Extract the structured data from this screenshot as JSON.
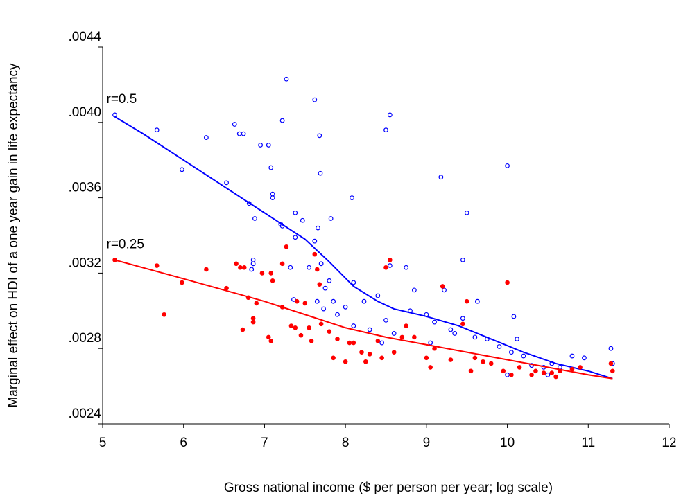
{
  "chart_data": {
    "type": "scatter",
    "x_label": "Gross national income ($ per person per year; log scale)",
    "y_label": "Marginal effect on HDI of a one year gain in life expectancy",
    "xlim": [
      5,
      12
    ],
    "xticks": [
      5,
      6,
      7,
      8,
      9,
      10,
      11,
      12
    ],
    "ylim": [
      0.0024,
      0.0044
    ],
    "yticks": [
      {
        "value": 0.0024,
        "label": ".0024"
      },
      {
        "value": 0.0028,
        "label": ".0028"
      },
      {
        "value": 0.0032,
        "label": ".0032"
      },
      {
        "value": 0.0036,
        "label": ".0036"
      },
      {
        "value": 0.004,
        "label": ".0040"
      },
      {
        "value": 0.0044,
        "label": ".0044"
      }
    ],
    "series": [
      {
        "name": "r=0.5",
        "color": "#0000ff",
        "marker": "open",
        "x": [
          5.15,
          5.67,
          5.98,
          6.28,
          6.53,
          6.63,
          6.69,
          6.74,
          6.81,
          6.86,
          6.86,
          6.88,
          6.95,
          7.05,
          7.08,
          7.1,
          7.1,
          7.22,
          7.2,
          7.27,
          7.22,
          7.32,
          7.36,
          7.38,
          7.38,
          7.47,
          7.55,
          7.62,
          7.62,
          7.66,
          7.68,
          7.69,
          7.7,
          7.75,
          7.8,
          7.82,
          8.08,
          8.1,
          8.23,
          8.4,
          8.5,
          8.55,
          8.55,
          8.75,
          8.85,
          9.18,
          9.22,
          9.45,
          9.5,
          9.63,
          10.0,
          10.08,
          10.12,
          11.28,
          8.0,
          8.1,
          8.3,
          8.5,
          8.6,
          8.8,
          9.0,
          9.1,
          9.3,
          9.45,
          9.6,
          9.75,
          9.9,
          10.05,
          10.2,
          10.3,
          10.45,
          10.55,
          10.65,
          10.8,
          10.95,
          11.3,
          7.85,
          7.9,
          7.73,
          8.45,
          9.05,
          9.35,
          10.5,
          10.0,
          6.84,
          7.65
        ],
        "values": [
          0.00404,
          0.00396,
          0.00375,
          0.00392,
          0.00368,
          0.00399,
          0.00394,
          0.00394,
          0.00357,
          0.00327,
          0.00325,
          0.00349,
          0.00388,
          0.00388,
          0.00376,
          0.00362,
          0.0036,
          0.00401,
          0.00346,
          0.00423,
          0.00345,
          0.00323,
          0.00306,
          0.00352,
          0.00339,
          0.00348,
          0.00323,
          0.00412,
          0.00337,
          0.00344,
          0.00393,
          0.00373,
          0.00325,
          0.00312,
          0.00316,
          0.00349,
          0.0036,
          0.00315,
          0.00305,
          0.00308,
          0.00396,
          0.00404,
          0.00324,
          0.00323,
          0.00311,
          0.00371,
          0.00311,
          0.00327,
          0.00352,
          0.00305,
          0.00377,
          0.00297,
          0.00285,
          0.0028,
          0.00302,
          0.00292,
          0.0029,
          0.00295,
          0.00288,
          0.003,
          0.00298,
          0.00294,
          0.0029,
          0.00296,
          0.00286,
          0.00285,
          0.00281,
          0.00278,
          0.00276,
          0.00271,
          0.0027,
          0.00272,
          0.0027,
          0.00276,
          0.00275,
          0.00272,
          0.00305,
          0.00298,
          0.00301,
          0.00283,
          0.00283,
          0.00288,
          0.00266,
          0.00266,
          0.00322,
          0.00305
        ],
        "fit": {
          "x": [
            5.15,
            5.5,
            6,
            6.5,
            7,
            7.5,
            7.8,
            8.1,
            8.4,
            8.6,
            9,
            9.4,
            9.8,
            10.2,
            10.6,
            11,
            11.3
          ],
          "values": [
            0.00403,
            0.00394,
            0.0038,
            0.00366,
            0.00352,
            0.00338,
            0.00326,
            0.00313,
            0.00305,
            0.00301,
            0.00297,
            0.00292,
            0.00285,
            0.00278,
            0.00272,
            0.00268,
            0.00264
          ]
        }
      },
      {
        "name": "r=0.25",
        "color": "#ff0000",
        "marker": "filled",
        "x": [
          5.15,
          5.67,
          5.76,
          5.98,
          6.28,
          6.53,
          6.65,
          6.7,
          6.73,
          6.75,
          6.8,
          6.86,
          6.86,
          6.9,
          6.97,
          7.05,
          7.08,
          7.08,
          7.1,
          7.22,
          7.22,
          7.27,
          7.33,
          7.38,
          7.4,
          7.5,
          7.55,
          7.62,
          7.65,
          7.68,
          7.7,
          7.8,
          7.85,
          7.9,
          8.0,
          8.05,
          8.1,
          8.2,
          8.3,
          8.4,
          8.5,
          8.55,
          8.6,
          8.7,
          8.75,
          8.85,
          9.0,
          9.1,
          9.2,
          9.3,
          9.45,
          9.5,
          9.6,
          9.7,
          9.8,
          9.95,
          10.0,
          10.05,
          10.15,
          10.3,
          10.45,
          10.55,
          10.65,
          10.8,
          10.9,
          11.28,
          11.3,
          8.25,
          8.45,
          9.05,
          9.55,
          10.35,
          10.6,
          7.45,
          7.58
        ],
        "values": [
          0.00327,
          0.00324,
          0.00298,
          0.00315,
          0.00322,
          0.00312,
          0.00325,
          0.00323,
          0.0029,
          0.00323,
          0.00307,
          0.00296,
          0.00294,
          0.00304,
          0.0032,
          0.00286,
          0.00284,
          0.0032,
          0.00316,
          0.00325,
          0.00302,
          0.00334,
          0.00292,
          0.00291,
          0.00305,
          0.00304,
          0.00291,
          0.0033,
          0.00322,
          0.00314,
          0.00293,
          0.00289,
          0.00275,
          0.00285,
          0.00273,
          0.00283,
          0.00283,
          0.00278,
          0.00277,
          0.00284,
          0.00323,
          0.00327,
          0.00278,
          0.00286,
          0.00292,
          0.00286,
          0.00275,
          0.0028,
          0.00313,
          0.00274,
          0.00293,
          0.00305,
          0.00275,
          0.00273,
          0.00272,
          0.00268,
          0.00315,
          0.00266,
          0.0027,
          0.00266,
          0.00267,
          0.00267,
          0.00268,
          0.00269,
          0.0027,
          0.00272,
          0.00268,
          0.00273,
          0.00275,
          0.0027,
          0.00268,
          0.00268,
          0.00265,
          0.00287,
          0.00284
        ],
        "fit": {
          "x": [
            5.15,
            6,
            7,
            7.5,
            8,
            8.5,
            9,
            9.5,
            10,
            10.5,
            11,
            11.3
          ],
          "values": [
            0.00327,
            0.00317,
            0.00305,
            0.00298,
            0.00291,
            0.00286,
            0.00282,
            0.00278,
            0.00274,
            0.0027,
            0.00266,
            0.00264
          ]
        }
      }
    ]
  }
}
